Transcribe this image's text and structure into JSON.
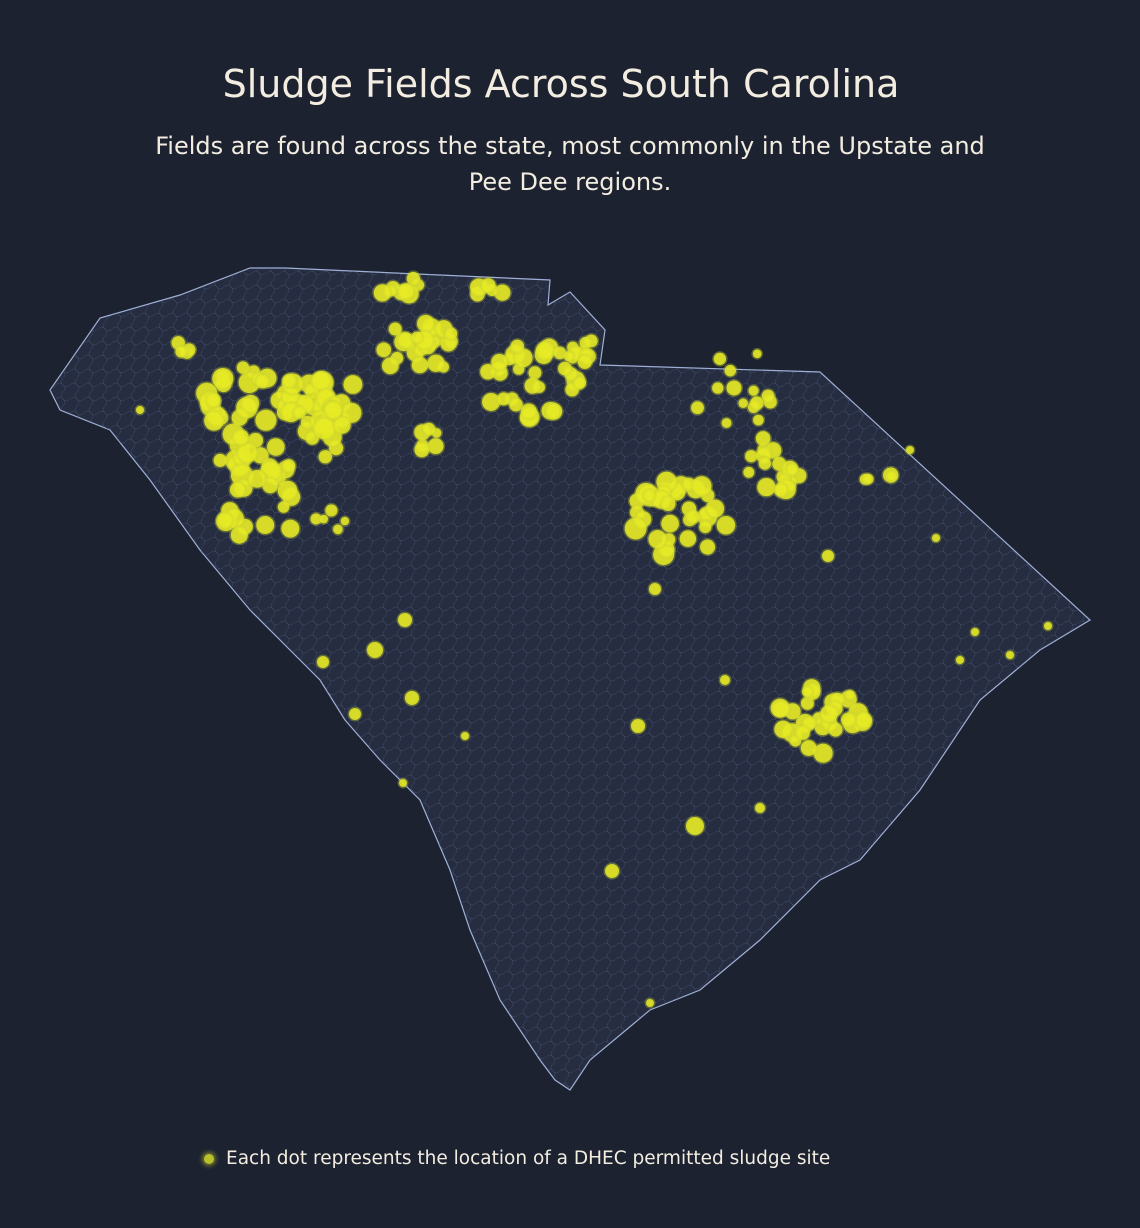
{
  "header": {
    "title": "Sludge Fields Across South Carolina",
    "subtitle": "Fields are found across the state, most commonly in the Upstate and Pee Dee regions."
  },
  "legend": {
    "label": "Each dot represents the location of a DHEC permitted sludge site"
  }
}
